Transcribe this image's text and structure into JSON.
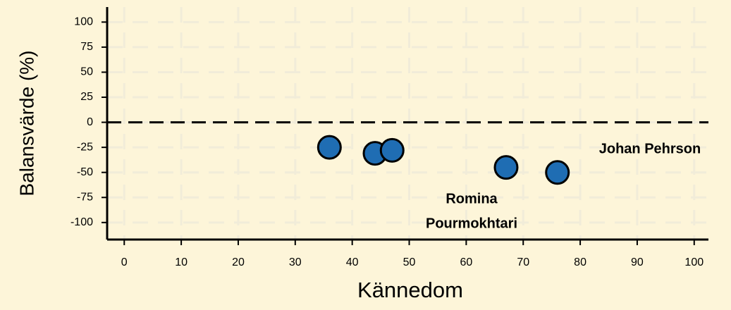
{
  "chart_data": {
    "type": "scatter",
    "x_label": "Kännedom",
    "y_label": "Balansvärde (%)",
    "series": [
      {
        "color": "#1f6db3",
        "x": [
          36,
          44,
          47,
          67,
          76
        ],
        "values": [
          -25,
          -31,
          -28,
          -45,
          -50
        ]
      }
    ],
    "xlim": [
      -3,
      102.5
    ],
    "ylim": [
      -117,
      115
    ],
    "xticks": [
      0,
      10,
      20,
      30,
      40,
      50,
      60,
      70,
      80,
      90,
      100
    ],
    "yticks": [
      -100,
      -75,
      -50,
      -25,
      0,
      25,
      50,
      75,
      100
    ],
    "grid": true,
    "hline": 0,
    "annotations": [
      {
        "lines": [
          "Johan Pehrson"
        ]
      },
      {
        "lines": [
          "Romina",
          "Pourmokhtari"
        ]
      }
    ]
  }
}
